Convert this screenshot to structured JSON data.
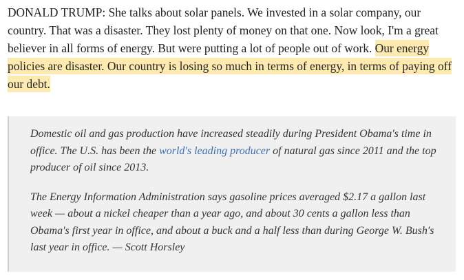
{
  "transcript": {
    "speaker": "DONALD TRUMP:",
    "plain_text": "She talks about solar panels. We invested in a solar company, our country. That was a disaster. They lost plenty of money on that one. Now look, I'm a great believer in all forms of energy. But were putting a lot of people out of work. ",
    "highlighted_text": "Our energy policies are disaster. Our country is losing so much in terms of energy, in terms of paying off our debt. ",
    "highlight_color": "#fdeab1"
  },
  "annotation": {
    "paragraph1": {
      "before_link": "Domestic oil and gas production have increased steadily during President Obama's time in office. The U.S. has been the ",
      "link_text": "world's leading producer",
      "after_link": " of natural gas since 2011 and the top producer of oil since 2013."
    },
    "paragraph2": "The Energy Information Administration says gasoline prices averaged $2.17 a gallon last week — about a nickel cheaper than a year ago, and about 30 cents a gallon less than Obama's first year in office, and about a buck and a half less than during George W. Bush's last year in office. — Scott Horsley",
    "background_color": "#f0f0f0",
    "link_color": "#3b6fb6"
  }
}
